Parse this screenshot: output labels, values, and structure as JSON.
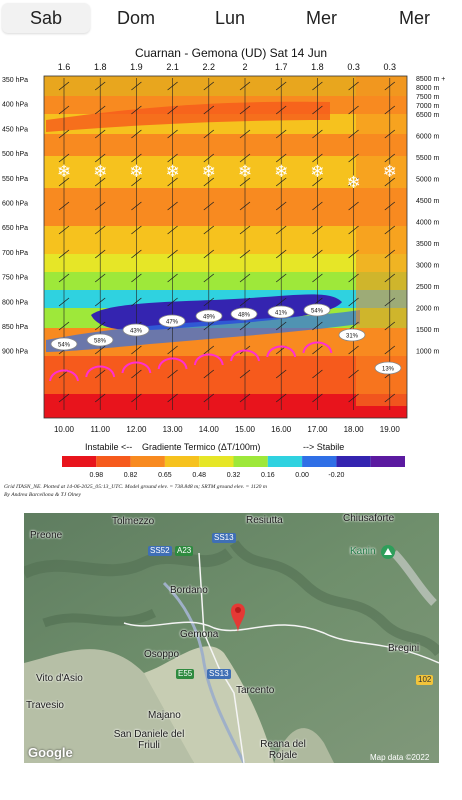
{
  "tabs": [
    "Sab",
    "Dom",
    "Lun",
    "Mer",
    "Mer"
  ],
  "chart": {
    "title": "Cuarnan - Gemona (UD) Sat 14 Jun",
    "top_values": [
      "1.6",
      "1.8",
      "1.9",
      "2.1",
      "2.2",
      "2",
      "1.7",
      "1.8",
      "0.3",
      "0.3"
    ],
    "hpa_labels": [
      "350 hPa",
      "400 hPa",
      "450 hPa",
      "500 hPa",
      "550 hPa",
      "600 hPa",
      "650 hPa",
      "700 hPa",
      "750 hPa",
      "800 hPa",
      "850 hPa",
      "900 hPa"
    ],
    "alt_labels": [
      "8500 m +",
      "8000 m",
      "7500 m",
      "7000 m",
      "6500 m",
      "6000 m",
      "5500 m",
      "5000 m",
      "4500 m",
      "4000 m",
      "3500 m",
      "3000 m",
      "2500 m",
      "2000 m",
      "1500 m",
      "1000 m"
    ],
    "hours": [
      "10.00",
      "11.00",
      "12.00",
      "13.00",
      "14.00",
      "15.00",
      "16.00",
      "17.00",
      "18.00",
      "19.00"
    ],
    "cloud_pcts": [
      "54%",
      "58%",
      "43%",
      "47%",
      "49%",
      "48%",
      "41%",
      "54%",
      "31%",
      "13%"
    ],
    "legend_left": "Instabile <--",
    "legend_mid": "Gradiente Termico (ΔT/100m)",
    "legend_right": "--> Stabile",
    "scale_values": [
      "0.98",
      "0.82",
      "0.65",
      "0.48",
      "0.32",
      "0.16",
      "0.00",
      "-0.20"
    ],
    "scale_colors": [
      "#e8141c",
      "#f65a1c",
      "#f88a20",
      "#f6c21e",
      "#e6e627",
      "#9ee83a",
      "#2fd2e0",
      "#2f6fe6",
      "#3424b0",
      "#5b1aa0"
    ],
    "footnote1": "Grid ITASN_NE. Plotted at 14-06-2025_05:13_UTC. Model ground elev. = 738.848 m; SRTM ground elev. = 1120 m",
    "footnote2": "By Andrea Barcellona & TJ Olney",
    "chart_data": {
      "type": "heatmap",
      "title": "Cuarnan - Gemona (UD) Sat 14 Jun",
      "x": [
        "10.00",
        "11.00",
        "12.00",
        "13.00",
        "14.00",
        "15.00",
        "16.00",
        "17.00",
        "18.00",
        "19.00"
      ],
      "xlabel": "",
      "ylabel": "",
      "colorbar_label": "Gradiente Termico (ΔT/100m)",
      "colorbar_ticks": [
        0.98,
        0.82,
        0.65,
        0.48,
        0.32,
        0.16,
        0.0,
        -0.2
      ]
    }
  },
  "map": {
    "places": [
      "Tolmezzo",
      "Resiutta",
      "Chiusaforte",
      "Preone",
      "Kanin",
      "Bordano",
      "Gemona",
      "Osoppo",
      "Bregini",
      "Vito d'Asio",
      "Tarcento",
      "Travesio",
      "Majano",
      "San Daniele del Friuli",
      "Reana del Rojale"
    ],
    "roads": [
      "SS52",
      "A23",
      "SS13",
      "E55",
      "SS13",
      "102"
    ],
    "google": "Google",
    "credit": "Map data ©2022"
  }
}
